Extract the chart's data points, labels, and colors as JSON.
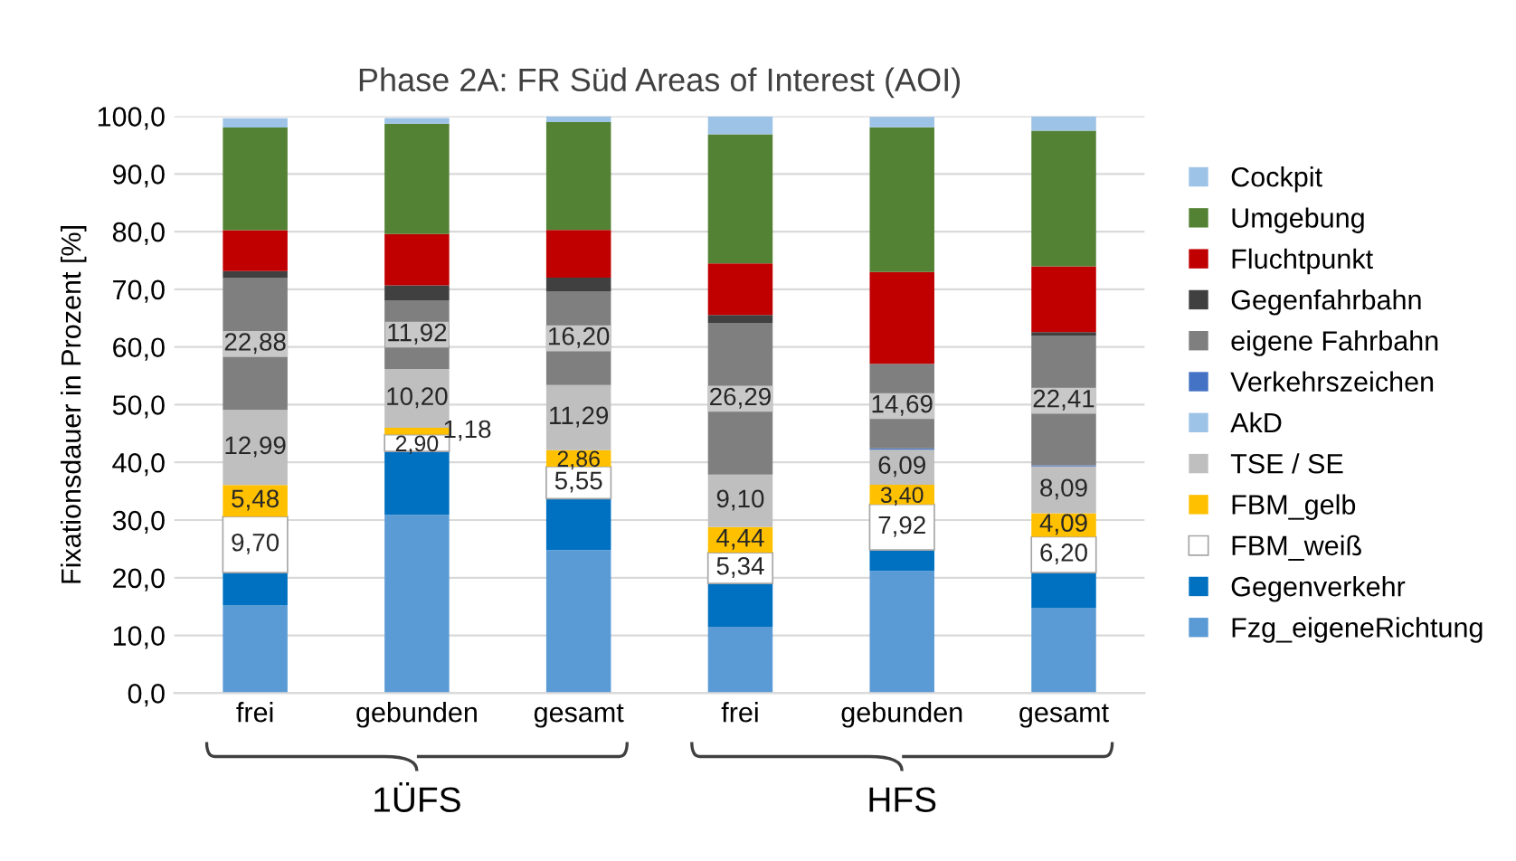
{
  "chart_data": {
    "type": "bar",
    "stacked": true,
    "title": "Phase 2A: FR Süd Areas of Interest (AOI)",
    "ylabel": "Fixationsdauer in Prozent [%]",
    "categories": [
      "frei",
      "gebunden",
      "gesamt",
      "frei",
      "gebunden",
      "gesamt"
    ],
    "series": [
      {
        "name": "Fzg_eigeneRichtung",
        "color": "#5b9bd5",
        "values": [
          15.2,
          30.9,
          24.8,
          11.5,
          21.2,
          14.8
        ]
      },
      {
        "name": "Gegenverkehr",
        "color": "#0070c0",
        "values": [
          5.7,
          11.0,
          8.9,
          7.5,
          3.6,
          6.1
        ]
      },
      {
        "name": "FBM_weiß",
        "color": "#ffffff",
        "values": [
          9.7,
          2.9,
          5.55,
          5.34,
          7.92,
          6.2
        ],
        "value_labels": [
          "9,70",
          "2,90",
          "5,55",
          "5,34",
          "7,92",
          "6,20"
        ]
      },
      {
        "name": "FBM_gelb",
        "color": "#ffc000",
        "values": [
          5.48,
          1.18,
          2.86,
          4.44,
          3.4,
          4.09
        ],
        "value_labels": [
          "5,48",
          "1,18",
          "2,86",
          "4,44",
          "3,40",
          "4,09"
        ]
      },
      {
        "name": "TSE / SE",
        "color": "#bfbfbf",
        "values": [
          12.99,
          10.2,
          11.29,
          9.1,
          6.09,
          8.09
        ],
        "value_labels": [
          "12,99",
          "10,20",
          "11,29",
          "9,10",
          "6,09",
          "8,09"
        ]
      },
      {
        "name": "AkD",
        "color": "#9dc3e6",
        "values": [
          0,
          0,
          0,
          0,
          0,
          0
        ]
      },
      {
        "name": "Verkehrszeichen",
        "color": "#4472c4",
        "values": [
          0,
          0,
          0,
          0,
          0.2,
          0.2
        ]
      },
      {
        "name": "eigene Fahrbahn",
        "color": "#7f7f7f",
        "values": [
          22.88,
          11.92,
          16.2,
          26.29,
          14.69,
          22.41
        ],
        "value_labels": [
          "22,88",
          "11,92",
          "16,20",
          "26,29",
          "14,69",
          "22,41"
        ]
      },
      {
        "name": "Gegenfahrbahn",
        "color": "#404040",
        "values": [
          1.2,
          2.6,
          2.4,
          1.4,
          0,
          0.7
        ]
      },
      {
        "name": "Fluchtpunkt",
        "color": "#c00000",
        "values": [
          7.1,
          8.9,
          8.3,
          8.9,
          15.9,
          11.4
        ]
      },
      {
        "name": "Umgebung",
        "color": "#548235",
        "values": [
          17.8,
          19.1,
          18.7,
          22.4,
          25.1,
          23.5
        ]
      },
      {
        "name": "Cockpit",
        "color": "#9dc3e6",
        "values": [
          1.6,
          1.0,
          1.0,
          3.1,
          1.8,
          2.5
        ]
      }
    ],
    "ylim": [
      0,
      100
    ],
    "yticks": [
      {
        "value": 0,
        "label": "0,0"
      },
      {
        "value": 10,
        "label": "10,0"
      },
      {
        "value": 20,
        "label": "20,0"
      },
      {
        "value": 30,
        "label": "30,0"
      },
      {
        "value": 40,
        "label": "40,0"
      },
      {
        "value": 50,
        "label": "50,0"
      },
      {
        "value": 60,
        "label": "60,0"
      },
      {
        "value": 70,
        "label": "70,0"
      },
      {
        "value": 80,
        "label": "80,0"
      },
      {
        "value": 90,
        "label": "90,0"
      },
      {
        "value": 100,
        "label": "100,0"
      }
    ],
    "grid": "y",
    "legend": "right",
    "annotations": [
      "1ÜFS",
      "HFS"
    ]
  }
}
